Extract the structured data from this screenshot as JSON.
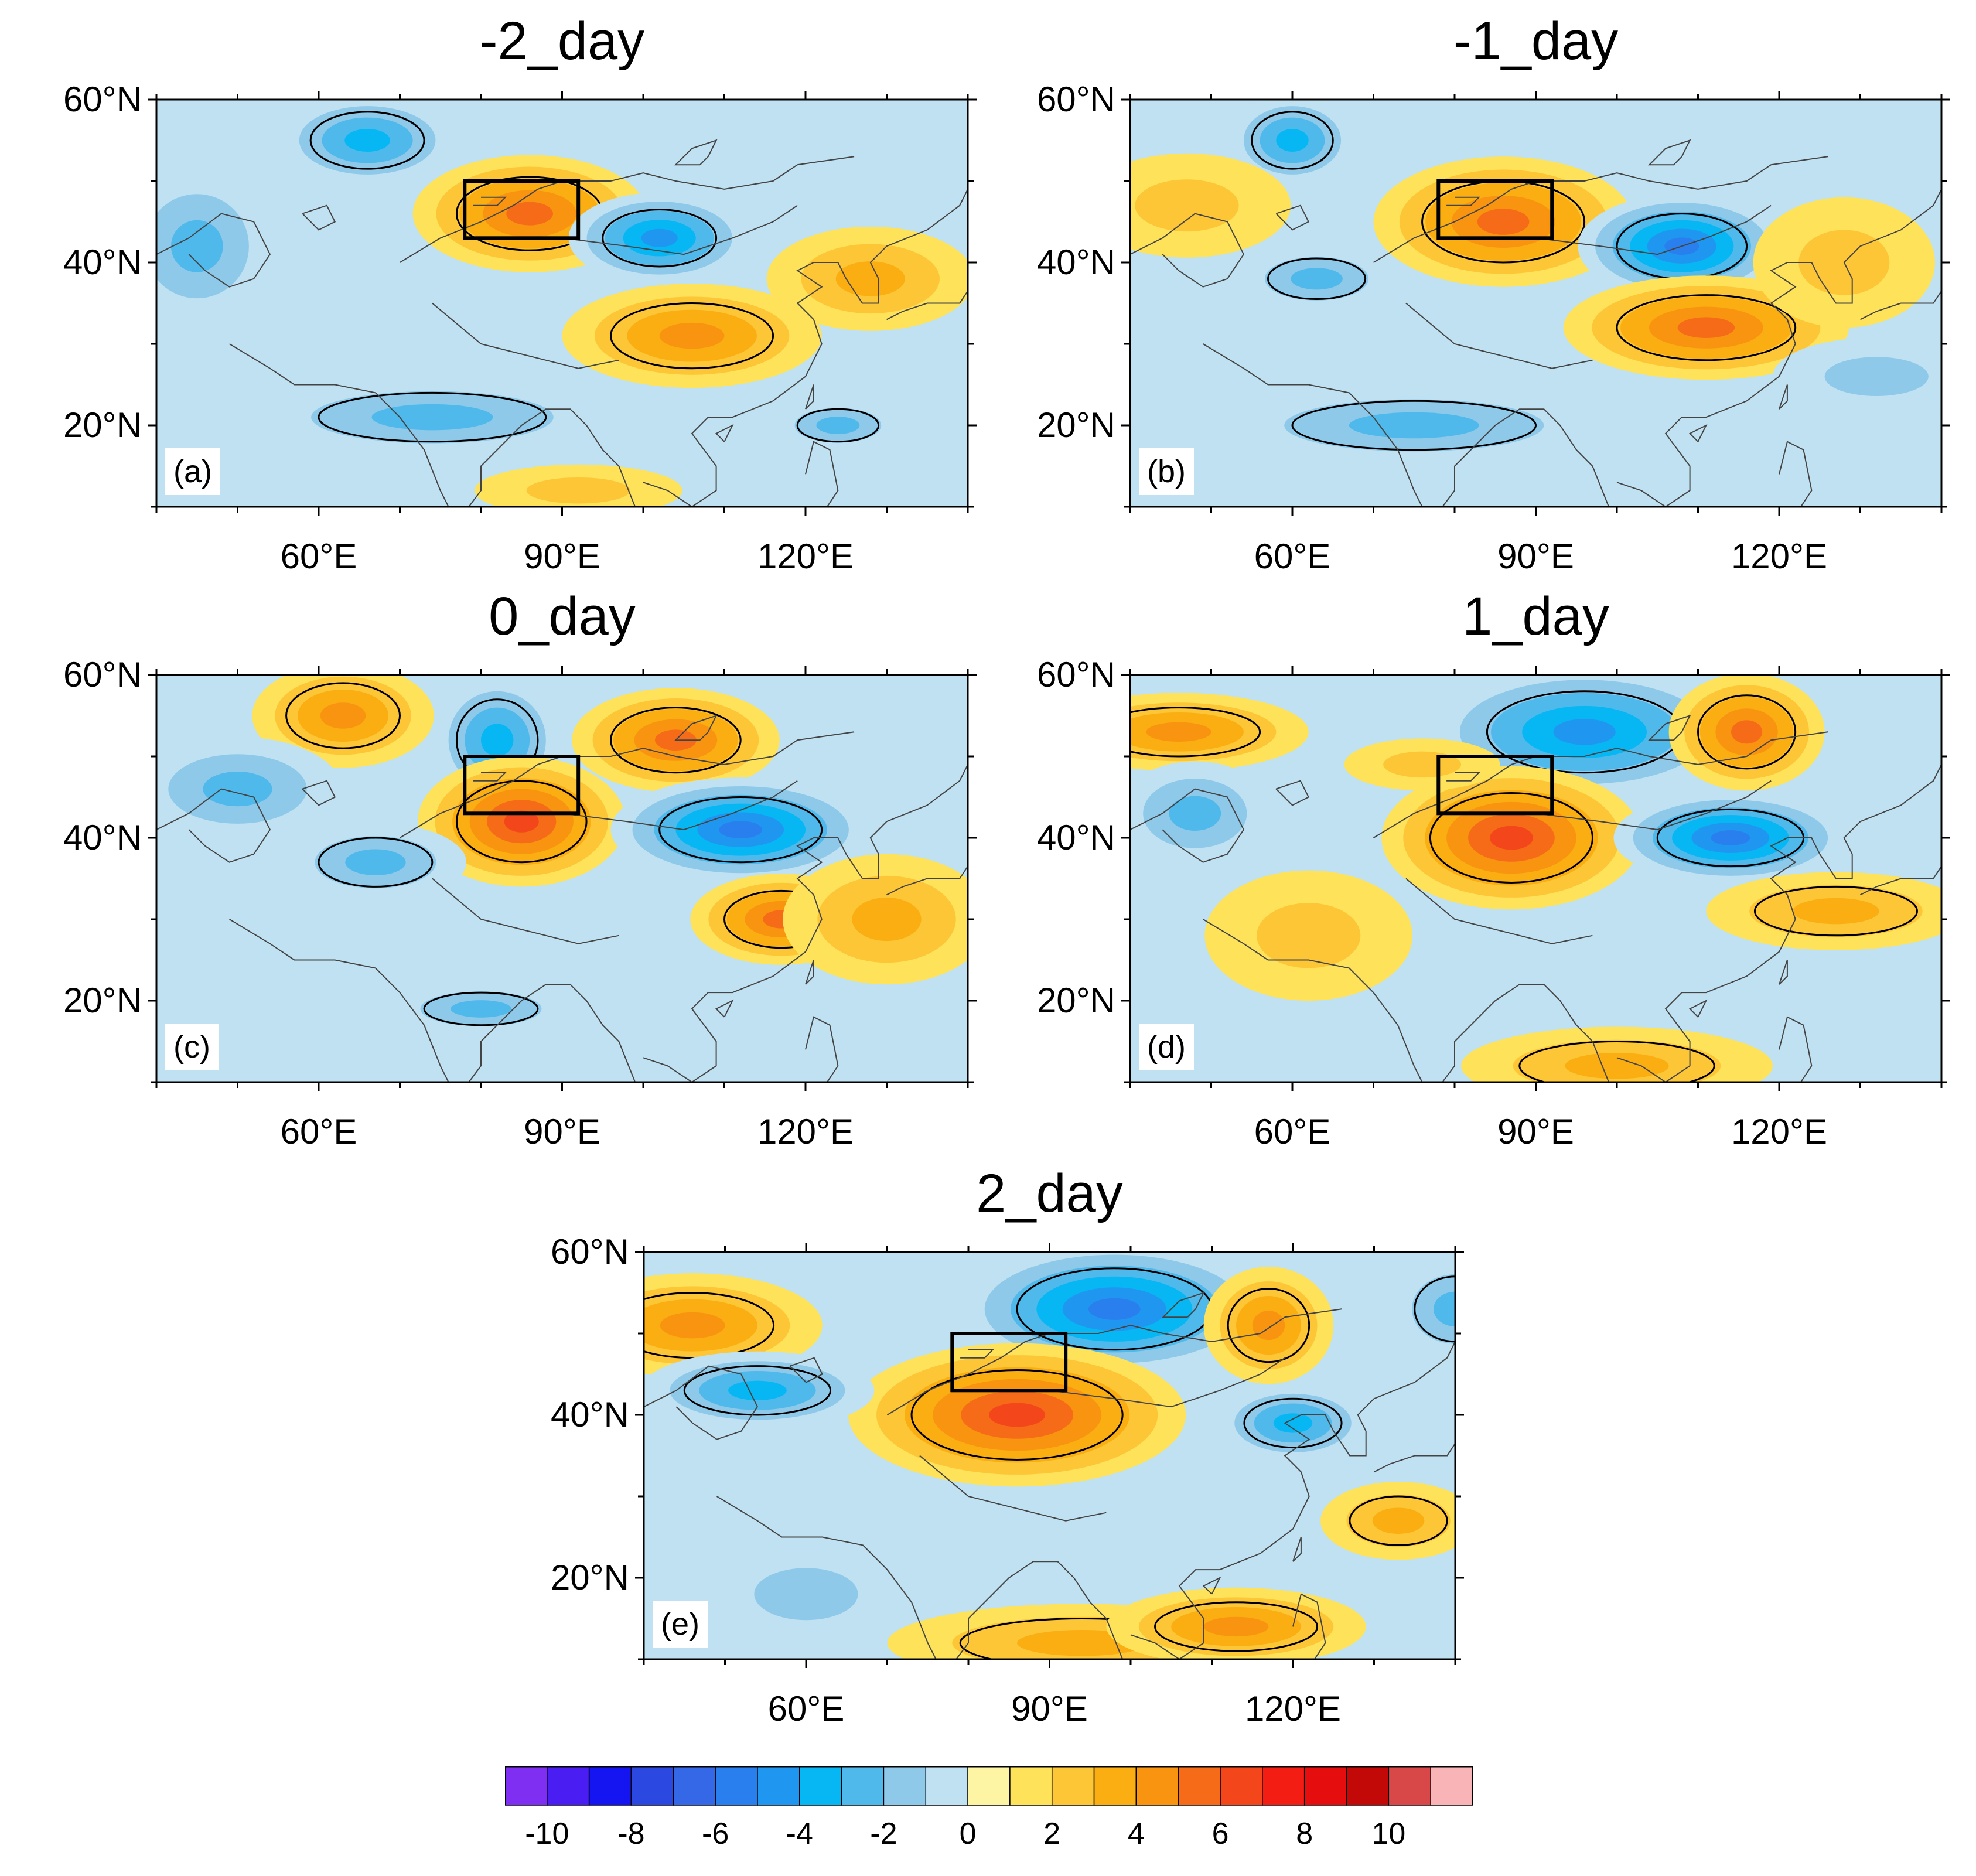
{
  "figure": {
    "panels": [
      {
        "id": "a",
        "title": "-2_day",
        "label": "(a)"
      },
      {
        "id": "b",
        "title": "-1_day",
        "label": "(b)"
      },
      {
        "id": "c",
        "title": "0_day",
        "label": "(c)"
      },
      {
        "id": "d",
        "title": "1_day",
        "label": "(d)"
      },
      {
        "id": "e",
        "title": "2_day",
        "label": "(e)"
      }
    ],
    "lat_ticks": [
      "60°N",
      "40°N",
      "20°N"
    ],
    "lon_ticks": [
      "60°E",
      "90°E",
      "120°E"
    ],
    "map_extent": {
      "lon": [
        40,
        140
      ],
      "lat": [
        10,
        60
      ]
    },
    "highlight_box": {
      "lon": [
        78,
        92
      ],
      "lat": [
        43,
        50
      ]
    }
  },
  "colorbar": {
    "levels": [
      -11,
      -10,
      -9,
      -8,
      -7,
      -6,
      -5,
      -4,
      -3,
      -2,
      -1,
      0,
      1,
      2,
      3,
      4,
      5,
      6,
      7,
      8,
      9,
      10,
      11
    ],
    "colors": [
      "#7f2ff2",
      "#4a1ef2",
      "#1515f2",
      "#2b49e0",
      "#3568e6",
      "#2a7fee",
      "#1f97f0",
      "#06b7f3",
      "#4fb9ec",
      "#8fc9ea",
      "#bfe1f2",
      "#fdf5a4",
      "#fde25a",
      "#fdc637",
      "#fbae11",
      "#f99411",
      "#f66b17",
      "#f3461a",
      "#f41d14",
      "#e50d0d",
      "#c30808",
      "#d94848",
      "#f9b4b7"
    ],
    "tick_labels": [
      "-10",
      "-8",
      "-6",
      "-4",
      "-2",
      "0",
      "2",
      "4",
      "6",
      "8",
      "10"
    ]
  }
}
